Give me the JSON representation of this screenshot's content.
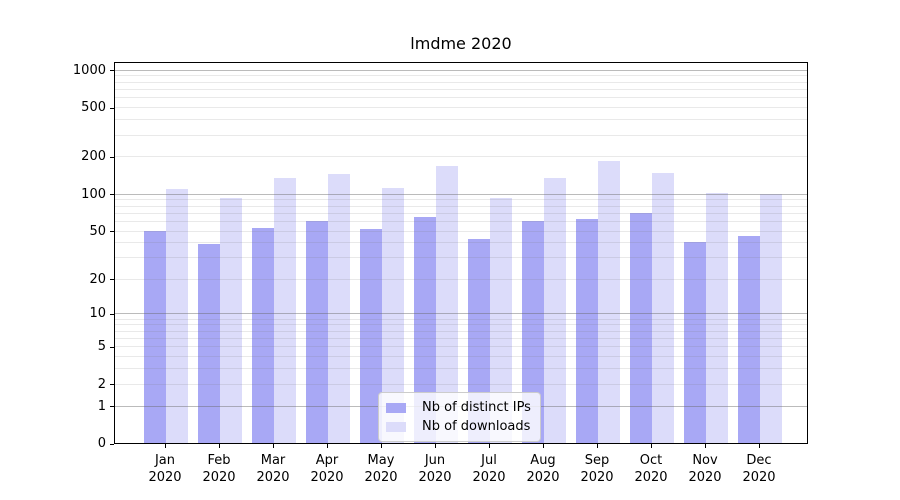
{
  "title": "lmdme 2020",
  "legend": {
    "items": [
      {
        "label": "Nb of distinct IPs",
        "color": "#a8a8f5"
      },
      {
        "label": "Nb of downloads",
        "color": "#dcdcfa"
      }
    ],
    "position": "lower center"
  },
  "chart_data": {
    "type": "bar",
    "title": "lmdme 2020",
    "categories": [
      "Jan 2020",
      "Feb 2020",
      "Mar 2020",
      "Apr 2020",
      "May 2020",
      "Jun 2020",
      "Jul 2020",
      "Aug 2020",
      "Sep 2020",
      "Oct 2020",
      "Nov 2020",
      "Dec 2020"
    ],
    "series": [
      {
        "name": "Nb of distinct IPs",
        "color": "#a8a8f5",
        "values": [
          50,
          39,
          53,
          60,
          52,
          65,
          43,
          60,
          62,
          70,
          40,
          45
        ]
      },
      {
        "name": "Nb of downloads",
        "color": "#dcdcfa",
        "values": [
          110,
          93,
          133,
          145,
          111,
          168,
          92,
          133,
          183,
          147,
          102,
          100
        ]
      }
    ],
    "xlabel": "",
    "ylabel": "",
    "yscale": "log1p",
    "ylim": [
      0,
      1185
    ],
    "yticks": [
      0,
      1,
      2,
      5,
      10,
      20,
      50,
      100,
      200,
      500,
      1000
    ],
    "grid_major": [
      1,
      10,
      100,
      1000
    ],
    "grid_minor": [
      2,
      3,
      4,
      5,
      6,
      7,
      8,
      9,
      20,
      30,
      40,
      50,
      60,
      70,
      80,
      90,
      200,
      300,
      400,
      500,
      600,
      700,
      800,
      900
    ],
    "grid": "on",
    "legend_position": "lower center"
  },
  "colors": {
    "background": "#ffffff",
    "bar_distinct_ips": "#a8a8f5",
    "bar_downloads": "#dcdcfa",
    "grid_major": "#b3b3b3",
    "grid_minor": "#e6e6e6",
    "axis": "#000000",
    "text": "#000000",
    "legend_border": "#cccccc"
  }
}
